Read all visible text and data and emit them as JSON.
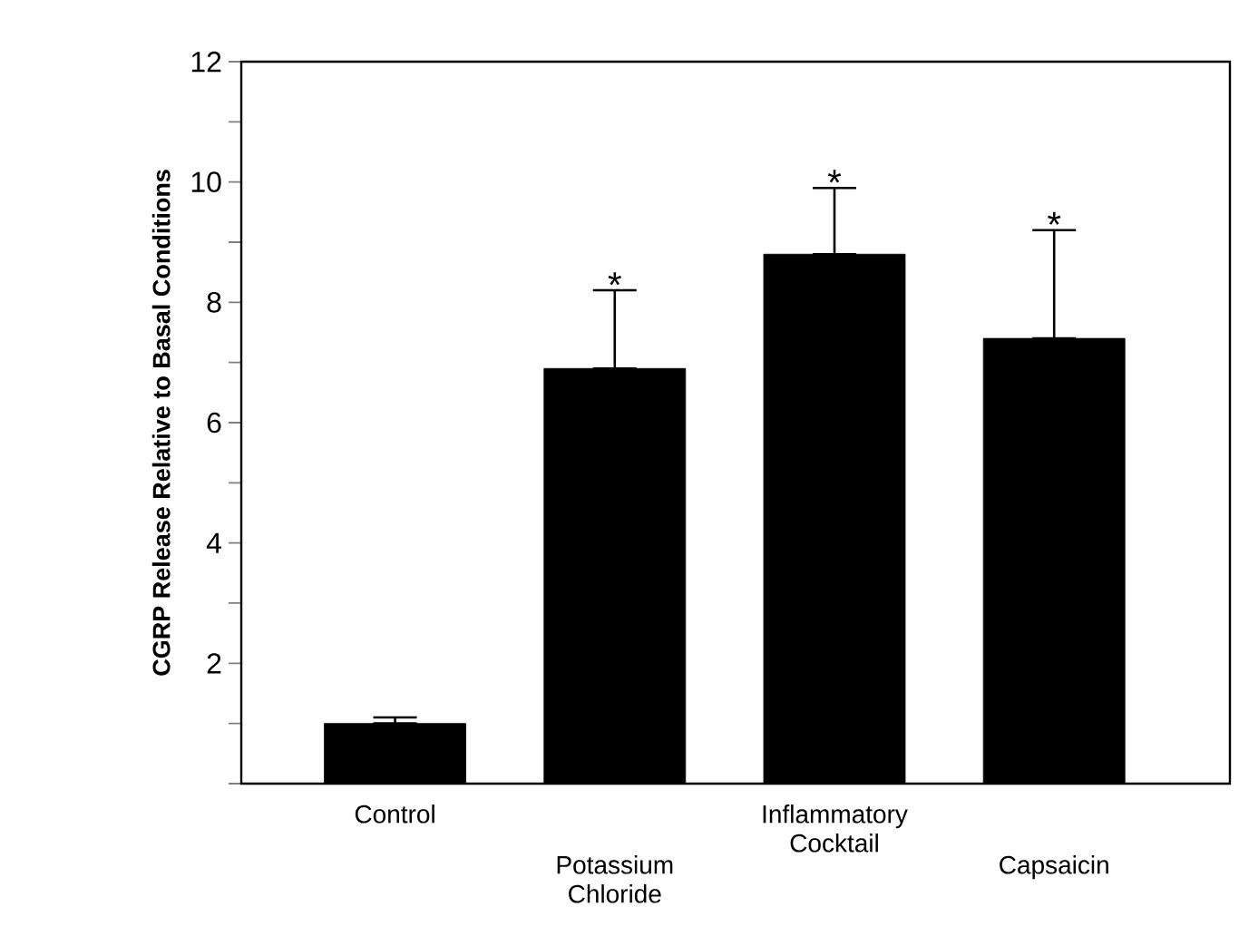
{
  "chart_data": {
    "type": "bar",
    "ylabel": "CGRP Release Relative to Basal Conditions",
    "categories": [
      "Control",
      "Potassium Chloride",
      "Inflammatory Cocktail",
      "Capsaicin"
    ],
    "values": [
      1.0,
      6.9,
      8.8,
      7.4
    ],
    "errors": [
      [
        1.0,
        1.1
      ],
      [
        6.9,
        8.2
      ],
      [
        8.8,
        9.9
      ],
      [
        7.4,
        9.2
      ]
    ],
    "color": "#000000",
    "ylim": [
      0,
      12
    ],
    "yticks": [
      {
        "value": 0,
        "label": null
      },
      {
        "value": 1,
        "label": null
      },
      2,
      {
        "value": 3,
        "label": null
      },
      4,
      {
        "value": 5,
        "label": null
      },
      6,
      {
        "value": 7,
        "label": null
      },
      8,
      {
        "value": 9,
        "label": null
      },
      10,
      {
        "value": 11,
        "label": null
      },
      12
    ],
    "annotations": [
      {
        "text": "*",
        "x": "Potassium Chloride",
        "y": 8.2
      },
      {
        "text": "*",
        "x": "Inflammatory Cocktail",
        "y": 9.9
      },
      {
        "text": "*",
        "x": "Capsaicin",
        "y": 9.2
      }
    ],
    "grid": false
  }
}
